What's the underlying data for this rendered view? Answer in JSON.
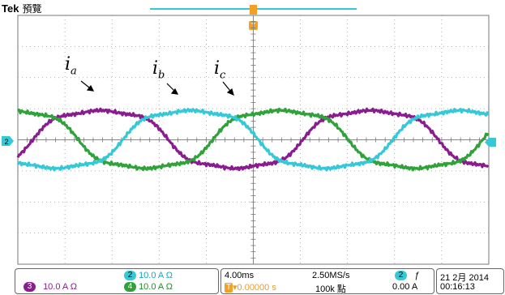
{
  "header": {
    "brand": "Tek",
    "mode": "預覽"
  },
  "waveform_labels": [
    {
      "main": "i",
      "sub": "a"
    },
    {
      "main": "i",
      "sub": "b"
    },
    {
      "main": "i",
      "sub": "c"
    }
  ],
  "channels": {
    "ch3": {
      "badge": "3",
      "scale": "10.0 A",
      "unit": "Ω",
      "color": "#8a1c8f"
    },
    "ch2": {
      "badge": "2",
      "scale": "10.0 A",
      "unit": "Ω",
      "color": "#35c8d6"
    },
    "ch4": {
      "badge": "4",
      "scale": "10.0 A",
      "unit": "Ω",
      "color": "#2fa23a"
    }
  },
  "ground_marker": "2",
  "trigger_marker": "T",
  "timebase": {
    "scale": "4.00ms",
    "sample_rate": "2.50MS/s",
    "position": "▾0.00000 s",
    "record_length": "100k 點"
  },
  "trigger": {
    "channel": "2",
    "slope": "ƒ",
    "level": "0.00 A"
  },
  "datetime": {
    "date": "21 2月 2014",
    "time": "00:16:13"
  }
}
